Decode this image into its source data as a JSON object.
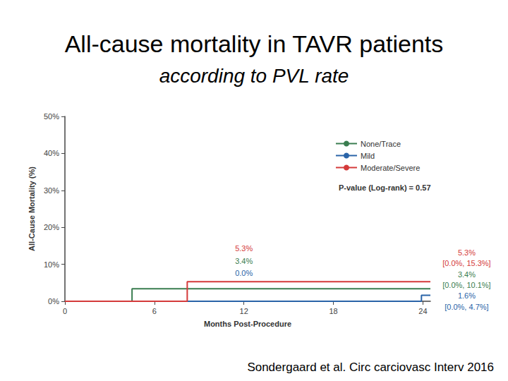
{
  "chart_data": {
    "type": "step",
    "title": "All-cause mortality in TAVR patients",
    "subtitle": "according to PVL rate",
    "x_label": "Months Post-Procedure",
    "y_label": "All-Cause Mortality (%)",
    "annotation": "P-value (Log-rank) = 0.57",
    "caption": "Sondergaard et al. Circ carciovasc Interv 2016",
    "xlim": [
      0,
      24.5
    ],
    "xticks": [
      0,
      6,
      12,
      18,
      24
    ],
    "ylim": [
      0,
      50
    ],
    "yticks": [
      {
        "value": 0,
        "label": "0%"
      },
      {
        "value": 10,
        "label": "10%"
      },
      {
        "value": 20,
        "label": "20%"
      },
      {
        "value": 30,
        "label": "30%"
      },
      {
        "value": 40,
        "label": "40%"
      },
      {
        "value": 50,
        "label": "50%"
      }
    ],
    "grid": false,
    "legend": "upper right",
    "series": [
      {
        "name": "None/Trace",
        "color": "#3a7d50",
        "x": [
          0,
          4.5,
          24.5
        ],
        "values": [
          0,
          3.4,
          3.4
        ],
        "landmarks": [
          {
            "x": 12,
            "label": "3.4%"
          },
          {
            "x": 24,
            "label": "3.4%",
            "ci_label": "[0.0%, 10.1%]"
          }
        ]
      },
      {
        "name": "Mild",
        "color": "#2a64a8",
        "x": [
          0,
          23.9,
          24.5
        ],
        "values": [
          0,
          1.6,
          1.6
        ],
        "landmarks": [
          {
            "x": 12,
            "label": "0.0%"
          },
          {
            "x": 24,
            "label": "1.6%",
            "ci_label": "[0.0%, 4.7%]"
          }
        ]
      },
      {
        "name": "Moderate/Severe",
        "color": "#d43a3a",
        "x": [
          0,
          8.2,
          24.5
        ],
        "values": [
          0,
          5.3,
          5.3
        ],
        "landmarks": [
          {
            "x": 12,
            "label": "5.3%"
          },
          {
            "x": 24,
            "label": "5.3%",
            "ci_label": "[0.0%, 15.3%]"
          }
        ]
      }
    ]
  }
}
